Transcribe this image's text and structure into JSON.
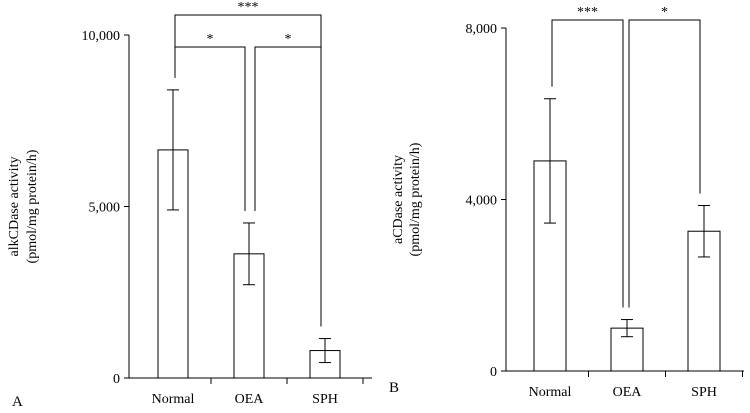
{
  "chart_data": [
    {
      "type": "bar",
      "panel": "A",
      "categories": [
        "Normal",
        "OEA",
        "SPH"
      ],
      "values": [
        6650,
        3620,
        800
      ],
      "errors": [
        1750,
        900,
        350
      ],
      "ylabel": "alkCDase activity",
      "ylabel_unit": "(pmol/mg protein/h)",
      "ylim": [
        0,
        10000
      ],
      "yticks": [
        0,
        5000,
        10000
      ],
      "ytick_labels": [
        "0",
        "5,000",
        "10,000"
      ],
      "significance": [
        {
          "from": 0,
          "to": 1,
          "label": "*"
        },
        {
          "from": 1,
          "to": 2,
          "label": "*"
        },
        {
          "from": 0,
          "to": 2,
          "label": "***"
        }
      ]
    },
    {
      "type": "bar",
      "panel": "B",
      "categories": [
        "Normal",
        "OEA",
        "SPH"
      ],
      "values": [
        4900,
        1000,
        3260
      ],
      "errors": [
        1450,
        200,
        600
      ],
      "ylabel": "aCDase activity",
      "ylabel_unit": "(pmol/mg protein/h)",
      "ylim": [
        0,
        8000
      ],
      "yticks": [
        0,
        4000,
        8000
      ],
      "ytick_labels": [
        "0",
        "4,000",
        "8,000"
      ],
      "significance": [
        {
          "from": 0,
          "to": 1,
          "label": "***"
        },
        {
          "from": 1,
          "to": 2,
          "label": "*"
        }
      ]
    }
  ]
}
